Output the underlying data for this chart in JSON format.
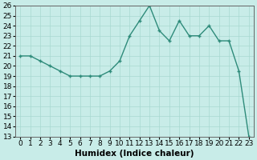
{
  "x": [
    0,
    1,
    2,
    3,
    4,
    5,
    6,
    7,
    8,
    9,
    10,
    11,
    12,
    13,
    14,
    15,
    16,
    17,
    18,
    19,
    20,
    21,
    22,
    23
  ],
  "y": [
    21,
    21,
    20.5,
    20,
    19.5,
    19,
    19,
    19,
    19,
    19.5,
    20.5,
    23,
    24.5,
    26,
    23.5,
    22.5,
    24.5,
    23,
    23,
    24,
    22.5,
    22.5,
    19.5,
    13
  ],
  "line_color": "#2e8b7a",
  "marker_color": "#2e8b7a",
  "bg_color": "#c8ece8",
  "grid_color": "#a8d8d0",
  "xlabel": "Humidex (Indice chaleur)",
  "ylim": [
    13,
    26
  ],
  "xlim": [
    -0.5,
    23.5
  ],
  "yticks": [
    13,
    14,
    15,
    16,
    17,
    18,
    19,
    20,
    21,
    22,
    23,
    24,
    25,
    26
  ],
  "xticks": [
    0,
    1,
    2,
    3,
    4,
    5,
    6,
    7,
    8,
    9,
    10,
    11,
    12,
    13,
    14,
    15,
    16,
    17,
    18,
    19,
    20,
    21,
    22,
    23
  ],
  "marker_size": 2.5,
  "line_width": 1.0,
  "font_size": 6.5,
  "xlabel_fontsize": 7.5
}
